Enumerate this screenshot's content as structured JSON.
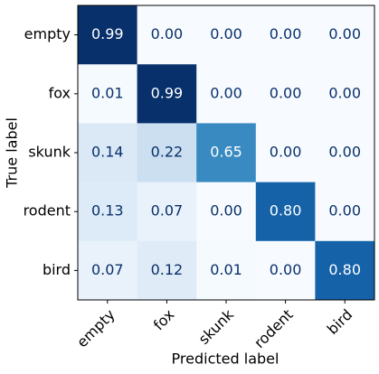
{
  "chart_data": {
    "type": "heatmap",
    "x_label": "Predicted label",
    "y_label": "True label",
    "x_categories": [
      "empty",
      "fox",
      "skunk",
      "rodent",
      "bird"
    ],
    "y_categories": [
      "empty",
      "fox",
      "skunk",
      "rodent",
      "bird"
    ],
    "colormap": "Blues",
    "values": [
      [
        0.99,
        0,
        0,
        0,
        0
      ],
      [
        0.01,
        0.99,
        0,
        0,
        0
      ],
      [
        0.14,
        0.22,
        0.65,
        0,
        0
      ],
      [
        0.13,
        0.07,
        0,
        0.8,
        0
      ],
      [
        0.07,
        0.12,
        0.01,
        0,
        0.8
      ]
    ],
    "value_labels": [
      [
        "0.99",
        "0.00",
        "0.00",
        "0.00",
        "0.00"
      ],
      [
        "0.01",
        "0.99",
        "0.00",
        "0.00",
        "0.00"
      ],
      [
        "0.14",
        "0.22",
        "0.65",
        "0.00",
        "0.00"
      ],
      [
        "0.13",
        "0.07",
        "0.00",
        "0.80",
        "0.00"
      ],
      [
        "0.07",
        "0.12",
        "0.01",
        "0.00",
        "0.80"
      ]
    ]
  }
}
